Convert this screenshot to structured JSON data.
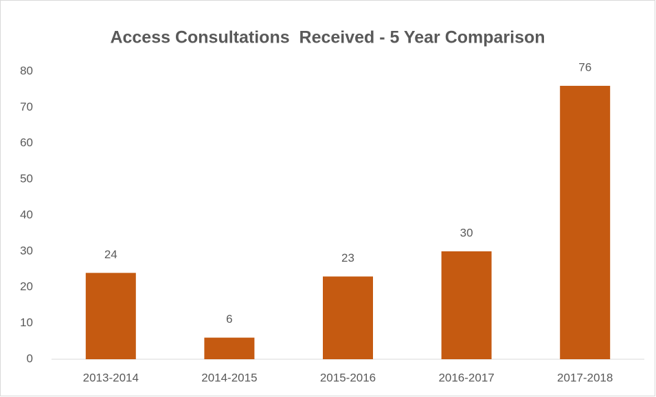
{
  "chart_data": {
    "type": "bar",
    "title": "Access Consultations  Received - 5 Year Comparison",
    "categories": [
      "2013-2014",
      "2014-2015",
      "2015-2016",
      "2016-2017",
      "2017-2018"
    ],
    "values": [
      24,
      6,
      23,
      30,
      76
    ],
    "color": "#c55a11",
    "ylim": [
      0,
      80
    ],
    "yticks": [
      0,
      10,
      20,
      30,
      40,
      50,
      60,
      70,
      80
    ],
    "grid": false
  }
}
